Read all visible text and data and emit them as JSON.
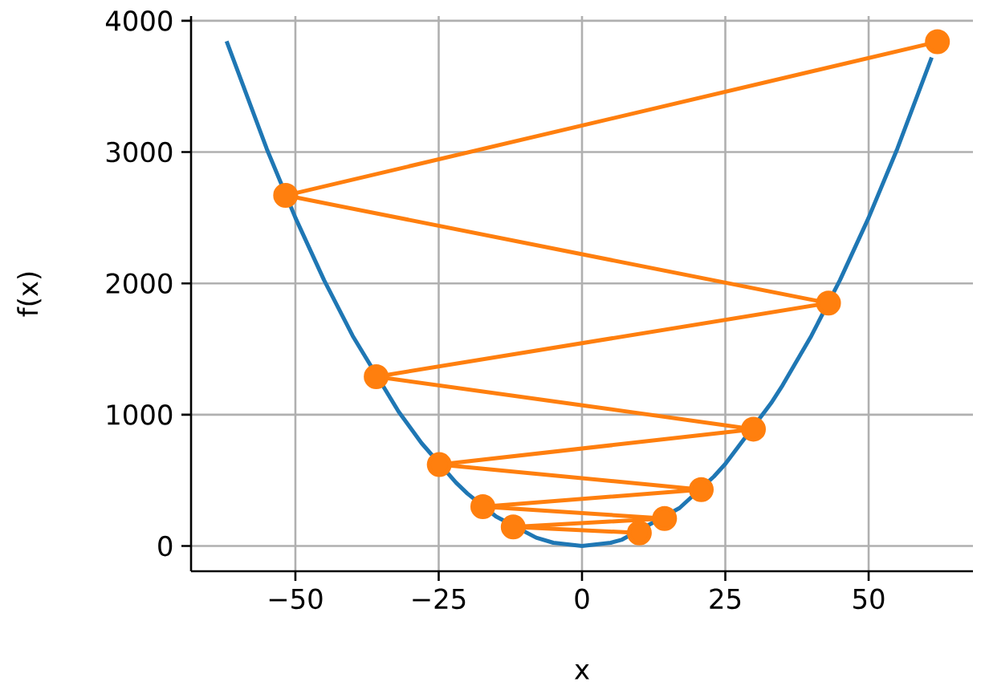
{
  "chart_data": {
    "type": "line",
    "xlabel": "x",
    "ylabel": "f(x)",
    "xlim": [
      -68.2,
      68.2
    ],
    "ylim": [
      -192,
      4036
    ],
    "xticks": [
      {
        "value": -50,
        "label": "−50"
      },
      {
        "value": -25,
        "label": "−25"
      },
      0,
      25,
      50
    ],
    "yticks": [
      0,
      1000,
      2000,
      3000,
      4000
    ],
    "grid": true,
    "series": [
      {
        "color": "#1f77b4",
        "marker": "none",
        "x": [
          -62,
          -55,
          -50,
          -45,
          -40,
          -32,
          -28,
          -22,
          -20,
          -15,
          -8,
          -5,
          0,
          5,
          7,
          17,
          23,
          25,
          33,
          35,
          40,
          45,
          50,
          55,
          61
        ],
        "values": [
          3844,
          3025,
          2500,
          2025,
          1600,
          1024,
          784,
          484,
          400,
          225,
          64,
          25,
          0,
          25,
          49,
          289,
          529,
          625,
          1089,
          1225,
          1600,
          2025,
          2500,
          3025,
          3721
        ]
      },
      {
        "color": "#ff7f0e",
        "marker": "circle",
        "x": [
          62,
          -51.7,
          43,
          -35.9,
          29.9,
          -24.9,
          20.8,
          -17.3,
          14.4,
          -12,
          10
        ],
        "values": [
          3840,
          2670,
          1850,
          1290,
          890,
          620,
          430,
          300,
          210,
          145,
          100
        ]
      }
    ]
  }
}
